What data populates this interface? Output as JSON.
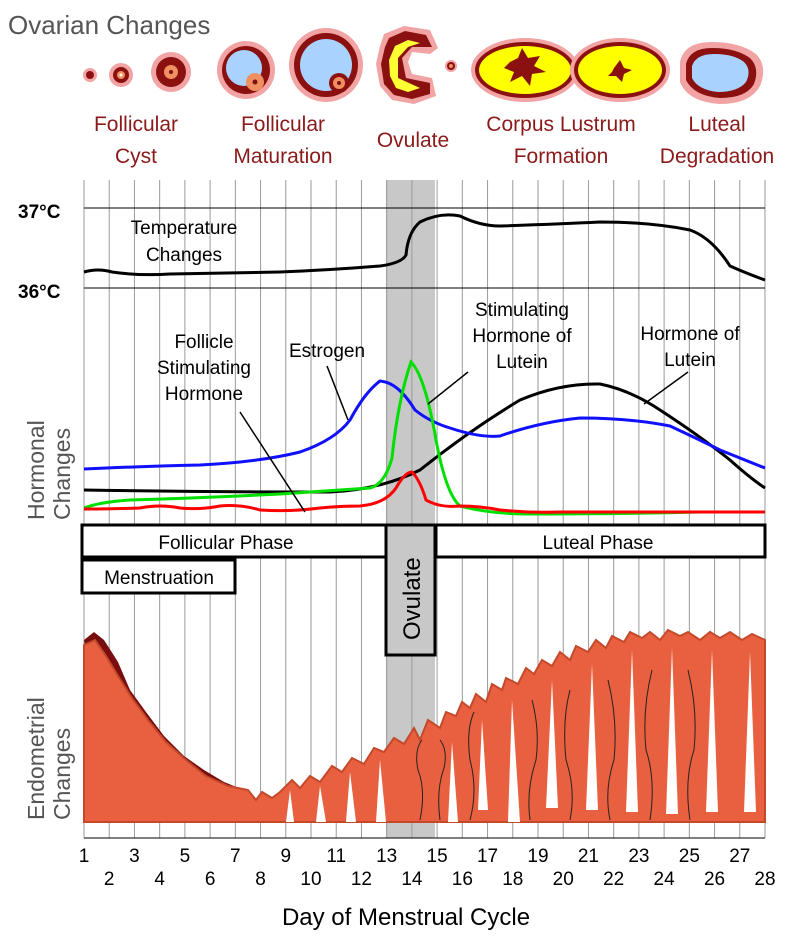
{
  "ovarian": {
    "title": "Ovarian Changes",
    "stages": [
      {
        "line1": "Follicular",
        "line2": "Cyst"
      },
      {
        "line1": "Follicular",
        "line2": "Maturation"
      },
      {
        "line1": "Ovulate",
        "line2": ""
      },
      {
        "line1": "Corpus Lustrum",
        "line2": "Formation"
      },
      {
        "line1": "Luteal",
        "line2": "Degradation"
      }
    ]
  },
  "temperature": {
    "high_label": "37°C",
    "low_label": "36°C",
    "curve_label_1": "Temperature",
    "curve_label_2": "Changes"
  },
  "hormonal": {
    "section_label_1": "Hormonal",
    "section_label_2": "Changes",
    "fsh_label": [
      "Follicle",
      "Stimulating",
      "Hormone"
    ],
    "estrogen_label": "Estrogen",
    "lh_label": [
      "Stimulating",
      "Hormone of",
      "Lutein"
    ],
    "progesterone_label": [
      "Hormone of",
      "Lutein"
    ]
  },
  "phases": {
    "follicular": "Follicular Phase",
    "luteal": "Luteal Phase",
    "menstruation": "Menstruation",
    "ovulate": "Ovulate"
  },
  "endometrial": {
    "section_label_1": "Endometrial",
    "section_label_2": "Changes"
  },
  "x_axis": {
    "title": "Day of Menstrual Cycle",
    "days": [
      1,
      2,
      3,
      4,
      5,
      6,
      7,
      8,
      9,
      10,
      11,
      12,
      13,
      14,
      15,
      16,
      17,
      18,
      19,
      20,
      21,
      22,
      23,
      24,
      25,
      26,
      27,
      28
    ]
  },
  "colors": {
    "fsh": "#ff0000",
    "estrogen": "#0000ff",
    "lh": "#00e000",
    "progesterone": "#000000",
    "label_red": "#8b1a1a",
    "endometrium": "#e8603f",
    "endometrium_dark": "#7a0d0d",
    "ovulation_band": "#c8c8c8"
  }
}
